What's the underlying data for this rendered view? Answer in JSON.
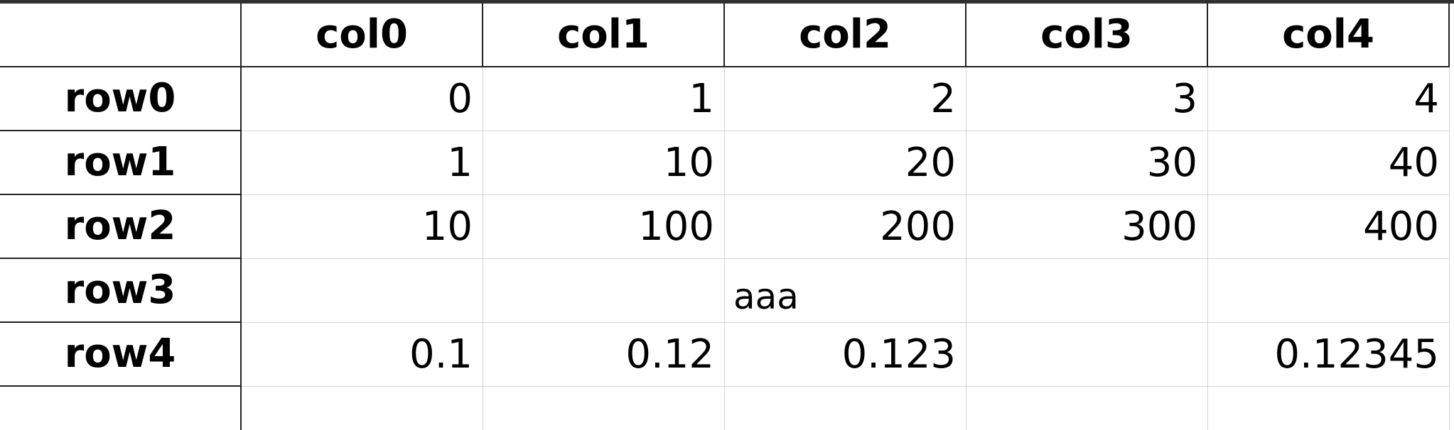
{
  "table": {
    "columns": [
      "col0",
      "col1",
      "col2",
      "col3",
      "col4"
    ],
    "rows": [
      {
        "label": "row0",
        "cells": [
          "0",
          "1",
          "2",
          "3",
          "4"
        ]
      },
      {
        "label": "row1",
        "cells": [
          "1",
          "10",
          "20",
          "30",
          "40"
        ]
      },
      {
        "label": "row2",
        "cells": [
          "10",
          "100",
          "200",
          "300",
          "400"
        ]
      },
      {
        "label": "row3",
        "cells": [
          "",
          "",
          "aaa",
          "",
          ""
        ]
      },
      {
        "label": "row4",
        "cells": [
          "0.1",
          "0.12",
          "0.123",
          "",
          "0.12345"
        ]
      }
    ]
  }
}
